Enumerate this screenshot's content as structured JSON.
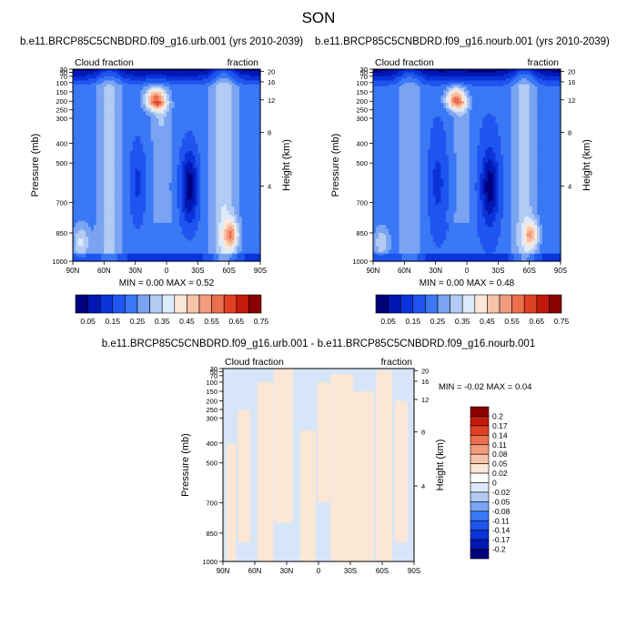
{
  "title": "SON",
  "chart_data": [
    {
      "type": "heatmap",
      "title": "b.e11.BRCP85C5CNBDRD.f09_g16.urb.001 (yrs 2010-2039)",
      "left_string": "Cloud fraction",
      "right_string": "fraction",
      "ylabel": "Pressure (mb)",
      "y2label": "Height (km)",
      "x_ticks": [
        "90N",
        "60N",
        "30N",
        "0",
        "30S",
        "60S",
        "90S"
      ],
      "y_ticks": [
        "30",
        "50",
        "70",
        "100",
        "150",
        "200",
        "250",
        "300",
        "400",
        "500",
        "700",
        "850",
        "1000"
      ],
      "y2_ticks": [
        "20",
        "16",
        "12",
        "8",
        "4"
      ],
      "stats": "MIN =   0.00   MAX =    0.52",
      "min": 0.0,
      "max": 0.52,
      "colorbar_labels": [
        "0.05",
        "0.15",
        "0.25",
        "0.35",
        "0.45",
        "0.55",
        "0.65",
        "0.75"
      ]
    },
    {
      "type": "heatmap",
      "title": "b.e11.BRCP85C5CNBDRD.f09_g16.nourb.001 (yrs 2010-2039)",
      "left_string": "Cloud fraction",
      "right_string": "fraction",
      "ylabel": "Pressure (mb)",
      "y2label": "Height (km)",
      "x_ticks": [
        "90N",
        "60N",
        "30N",
        "0",
        "30S",
        "60S",
        "90S"
      ],
      "y_ticks": [
        "30",
        "50",
        "70",
        "100",
        "150",
        "200",
        "250",
        "300",
        "400",
        "500",
        "700",
        "850",
        "1000"
      ],
      "y2_ticks": [
        "20",
        "16",
        "12",
        "8",
        "4"
      ],
      "stats": "MIN =   0.00   MAX =    0.48",
      "min": 0.0,
      "max": 0.48,
      "colorbar_labels": [
        "0.05",
        "0.15",
        "0.25",
        "0.35",
        "0.45",
        "0.55",
        "0.65",
        "0.75"
      ]
    },
    {
      "type": "heatmap",
      "title": "b.e11.BRCP85C5CNBDRD.f09_g16.urb.001 - b.e11.BRCP85C5CNBDRD.f09_g16.nourb.001",
      "left_string": "Cloud fraction",
      "right_string": "fraction",
      "ylabel": "Pressure (mb)",
      "y2label": "Height (km)",
      "x_ticks": [
        "90N",
        "60N",
        "30N",
        "0",
        "30S",
        "60S",
        "90S"
      ],
      "y_ticks": [
        "30",
        "50",
        "70",
        "100",
        "150",
        "200",
        "250",
        "300",
        "400",
        "500",
        "700",
        "850",
        "1000"
      ],
      "y2_ticks": [
        "20",
        "16",
        "12",
        "8",
        "4"
      ],
      "stats": "MIN =  -0.02   MAX =    0.04",
      "min": -0.02,
      "max": 0.04,
      "colorbar_labels": [
        "0.2",
        "0.17",
        "0.14",
        "0.11",
        "0.08",
        "0.05",
        "0.02",
        "0",
        "-0.02",
        "-0.05",
        "-0.08",
        "-0.11",
        "-0.14",
        "-0.17",
        "-0.2"
      ]
    }
  ],
  "colors": {
    "abs_colorbar": [
      "#00007f",
      "#0018b3",
      "#0a33d9",
      "#1f55ef",
      "#3a78f5",
      "#7aa4f2",
      "#b3cbf2",
      "#ddeafb",
      "#fbe7d6",
      "#f7c3a8",
      "#f39c7d",
      "#ec6f4e",
      "#e04125",
      "#c21a0b",
      "#8b0000"
    ],
    "diff_colorbar": [
      "#8b0000",
      "#c21a0b",
      "#e04125",
      "#ec6f4e",
      "#f39c7d",
      "#f7c3a8",
      "#fbe7d6",
      "#ffffff",
      "#ddeafb",
      "#b3cbf2",
      "#7aa4f2",
      "#3a78f5",
      "#1f55ef",
      "#0a33d9",
      "#0018b3",
      "#00007f"
    ],
    "diff_light_blue": "#d6e6f8",
    "diff_light_peach": "#fbe7d6"
  }
}
